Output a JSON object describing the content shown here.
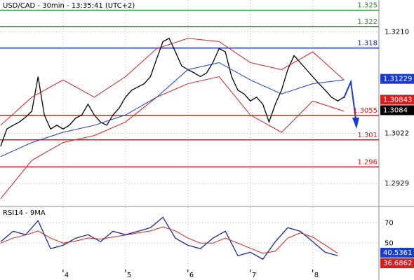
{
  "chart_data": [
    {
      "type": "line",
      "title": "USD/CAD - 30min - 13:35:41 (UTC+2)",
      "xlim": [
        2.99,
        9.06
      ],
      "xticks": [
        4,
        5,
        6,
        7,
        8
      ],
      "ylim": [
        1.2893,
        1.3269
      ],
      "yticks": [
        {
          "value": 1.321,
          "label": "1.3210"
        },
        1.3022,
        1.2929
      ],
      "grid": true,
      "series": [
        {
          "color": "#000000",
          "x": [
            3.0,
            3.1,
            3.2,
            3.3,
            3.4,
            3.5,
            3.6,
            3.7,
            3.8,
            3.9,
            4.0,
            4.1,
            4.2,
            4.3,
            4.4,
            4.5,
            4.6,
            4.7,
            4.8,
            4.9,
            5.0,
            5.1,
            5.2,
            5.3,
            5.4,
            5.5,
            5.6,
            5.7,
            5.8,
            5.9,
            6.0,
            6.1,
            6.2,
            6.3,
            6.4,
            6.5,
            6.6,
            6.7,
            6.8,
            6.9,
            7.0,
            7.1,
            7.2,
            7.3,
            7.4,
            7.5,
            7.6,
            7.7,
            7.8,
            7.9,
            8.0,
            8.1,
            8.2,
            8.3,
            8.4,
            8.5
          ],
          "values": [
            1.2998,
            1.303,
            1.3037,
            1.3043,
            1.3052,
            1.3063,
            1.3127,
            1.3056,
            1.303,
            1.3037,
            1.303,
            1.3037,
            1.305,
            1.3056,
            1.3076,
            1.3056,
            1.3043,
            1.3037,
            1.3056,
            1.3069,
            1.3089,
            1.3102,
            1.3108,
            1.3114,
            1.3127,
            1.316,
            1.3192,
            1.3198,
            1.3173,
            1.3147,
            1.314,
            1.3134,
            1.3127,
            1.3134,
            1.3153,
            1.3179,
            1.3173,
            1.3127,
            1.3102,
            1.3095,
            1.3082,
            1.3089,
            1.3076,
            1.3043,
            1.3076,
            1.3102,
            1.314,
            1.3166,
            1.3153,
            1.314,
            1.3127,
            1.3114,
            1.3102,
            1.3089,
            1.3082,
            1.3089
          ]
        },
        {
          "color": "#d42020",
          "x": [
            3.0,
            3.5,
            4.0,
            4.5,
            5.0,
            5.5,
            6.0,
            6.5,
            7.0,
            7.5,
            8.0,
            8.5
          ],
          "values": [
            1.3037,
            1.3089,
            1.3121,
            1.3089,
            1.3127,
            1.3179,
            1.3198,
            1.3192,
            1.3153,
            1.314,
            1.3173,
            1.3121
          ]
        },
        {
          "color": "#d42020",
          "x": [
            3.0,
            3.5,
            4.0,
            4.5,
            5.0,
            5.5,
            6.0,
            6.5,
            7.0,
            7.5,
            8.0,
            8.5
          ],
          "values": [
            1.2901,
            1.2972,
            1.3005,
            1.3018,
            1.3043,
            1.3089,
            1.3114,
            1.3127,
            1.3056,
            1.3024,
            1.3082,
            1.3063
          ]
        },
        {
          "color": "#1a3cc8",
          "x": [
            3.0,
            3.5,
            4.0,
            4.5,
            5.0,
            5.5,
            6.0,
            6.5,
            7.0,
            7.5,
            8.0,
            8.5
          ],
          "values": [
            1.2979,
            1.3005,
            1.3024,
            1.3037,
            1.3056,
            1.3089,
            1.314,
            1.3153,
            1.3121,
            1.3095,
            1.3114,
            1.3121
          ]
        }
      ],
      "levels": [
        {
          "value": 1.325,
          "color": "#2e8b2e"
        },
        {
          "value": 1.322,
          "color": "#2e8b2e"
        },
        {
          "value": 1.318,
          "color": "#1a2a9a"
        },
        {
          "value": 1.3055,
          "color": "#d42020"
        },
        {
          "value": 1.301,
          "color": "#d42020"
        },
        {
          "value": 1.296,
          "color": "#d42020"
        }
      ],
      "markers": [
        {
          "value": 1.31229,
          "color": "#1a3cc8"
        },
        {
          "value": 1.30843,
          "color": "#d42020"
        },
        {
          "value": 1.3084,
          "color": "#000000"
        }
      ]
    },
    {
      "type": "line",
      "title": "RSI14 - 9MA",
      "xlim": [
        2.99,
        9.06
      ],
      "ylim": [
        24,
        84
      ],
      "yticks": [
        70,
        50
      ],
      "grid": true,
      "series": [
        {
          "color": "#1a2a9a",
          "x": [
            3.0,
            3.2,
            3.4,
            3.6,
            3.8,
            4.0,
            4.2,
            4.4,
            4.6,
            4.8,
            5.0,
            5.2,
            5.4,
            5.6,
            5.8,
            6.0,
            6.2,
            6.4,
            6.6,
            6.8,
            7.0,
            7.2,
            7.4,
            7.6,
            7.8,
            8.0,
            8.2,
            8.4
          ],
          "values": [
            51.4,
            61.7,
            58.3,
            72.1,
            44.5,
            47.9,
            54.8,
            58.3,
            51.4,
            61.7,
            58.3,
            61.7,
            65.2,
            75.5,
            54.8,
            47.9,
            44.5,
            54.8,
            61.7,
            37.6,
            41.0,
            34.1,
            51.4,
            65.2,
            61.7,
            51.4,
            41.0,
            37.6
          ]
        },
        {
          "color": "#d42020",
          "x": [
            3.0,
            3.2,
            3.4,
            3.6,
            3.8,
            4.0,
            4.2,
            4.4,
            4.6,
            4.8,
            5.0,
            5.2,
            5.4,
            5.6,
            5.8,
            6.0,
            6.2,
            6.4,
            6.6,
            6.8,
            7.0,
            7.2,
            7.4,
            7.6,
            7.8,
            8.0,
            8.2,
            8.4
          ],
          "values": [
            50,
            55,
            58,
            62,
            55,
            50,
            52,
            55,
            54,
            56,
            58,
            60,
            62,
            66,
            62,
            55,
            50,
            50,
            55,
            50,
            45,
            40,
            42,
            55,
            60,
            56,
            48,
            40
          ]
        }
      ],
      "markers": [
        {
          "value": 40.5361,
          "color": "#1a3cc8"
        },
        {
          "value": 36.6862,
          "color": "#d42020"
        }
      ]
    }
  ]
}
